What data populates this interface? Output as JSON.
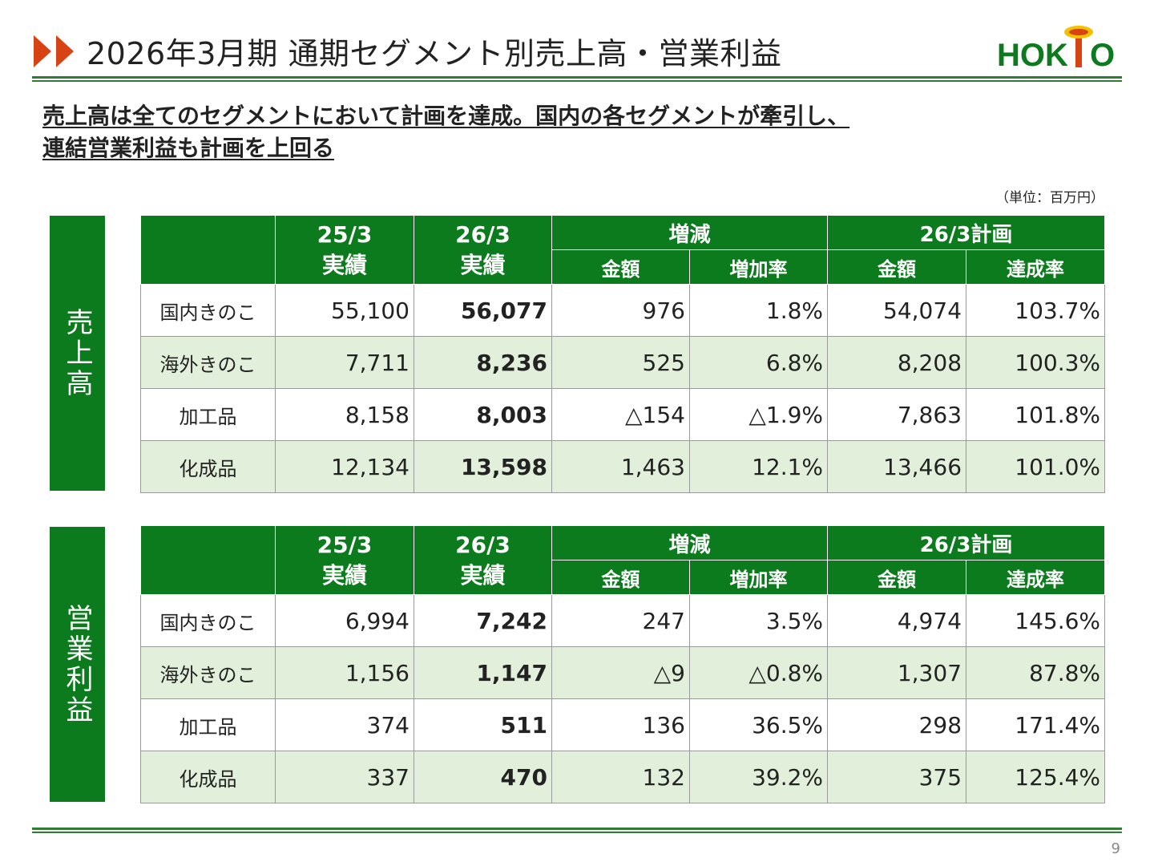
{
  "header": {
    "title": "2026年3月期 通期セグメント別売上高・営業利益",
    "logo_text": "HOKTO",
    "subtitle_line1": "売上高は全てのセグメントにおいて計画を達成。国内の各セグメントが牽引し、",
    "subtitle_line2": "連結営業利益も計画を上回る",
    "unit": "（単位：百万円）"
  },
  "colors": {
    "header_green": "#0b7b1d",
    "alt_row": "#e2efda",
    "arrow_red": "#d84315"
  },
  "columns": {
    "prev_year": "25/3",
    "curr_year": "26/3",
    "actual": "実績",
    "change": "増減",
    "plan": "26/3計画",
    "amount": "金額",
    "growth_rate": "増加率",
    "achievement_rate": "達成率"
  },
  "sales": {
    "label": "売上高",
    "rows": [
      {
        "name": "国内きのこ",
        "prev": "55,100",
        "curr": "56,077",
        "diff": "976",
        "rate": "1.8%",
        "plan": "54,074",
        "ach": "103.7%"
      },
      {
        "name": "海外きのこ",
        "prev": "7,711",
        "curr": "8,236",
        "diff": "525",
        "rate": "6.8%",
        "plan": "8,208",
        "ach": "100.3%"
      },
      {
        "name": "加工品",
        "prev": "8,158",
        "curr": "8,003",
        "diff": "△154",
        "rate": "△1.9%",
        "plan": "7,863",
        "ach": "101.8%"
      },
      {
        "name": "化成品",
        "prev": "12,134",
        "curr": "13,598",
        "diff": "1,463",
        "rate": "12.1%",
        "plan": "13,466",
        "ach": "101.0%"
      }
    ]
  },
  "profit": {
    "label": "営業利益",
    "rows": [
      {
        "name": "国内きのこ",
        "prev": "6,994",
        "curr": "7,242",
        "diff": "247",
        "rate": "3.5%",
        "plan": "4,974",
        "ach": "145.6%"
      },
      {
        "name": "海外きのこ",
        "prev": "1,156",
        "curr": "1,147",
        "diff": "△9",
        "rate": "△0.8%",
        "plan": "1,307",
        "ach": "87.8%"
      },
      {
        "name": "加工品",
        "prev": "374",
        "curr": "511",
        "diff": "136",
        "rate": "36.5%",
        "plan": "298",
        "ach": "171.4%"
      },
      {
        "name": "化成品",
        "prev": "337",
        "curr": "470",
        "diff": "132",
        "rate": "39.2%",
        "plan": "375",
        "ach": "125.4%"
      }
    ]
  },
  "footer": {
    "page_number": "9"
  }
}
